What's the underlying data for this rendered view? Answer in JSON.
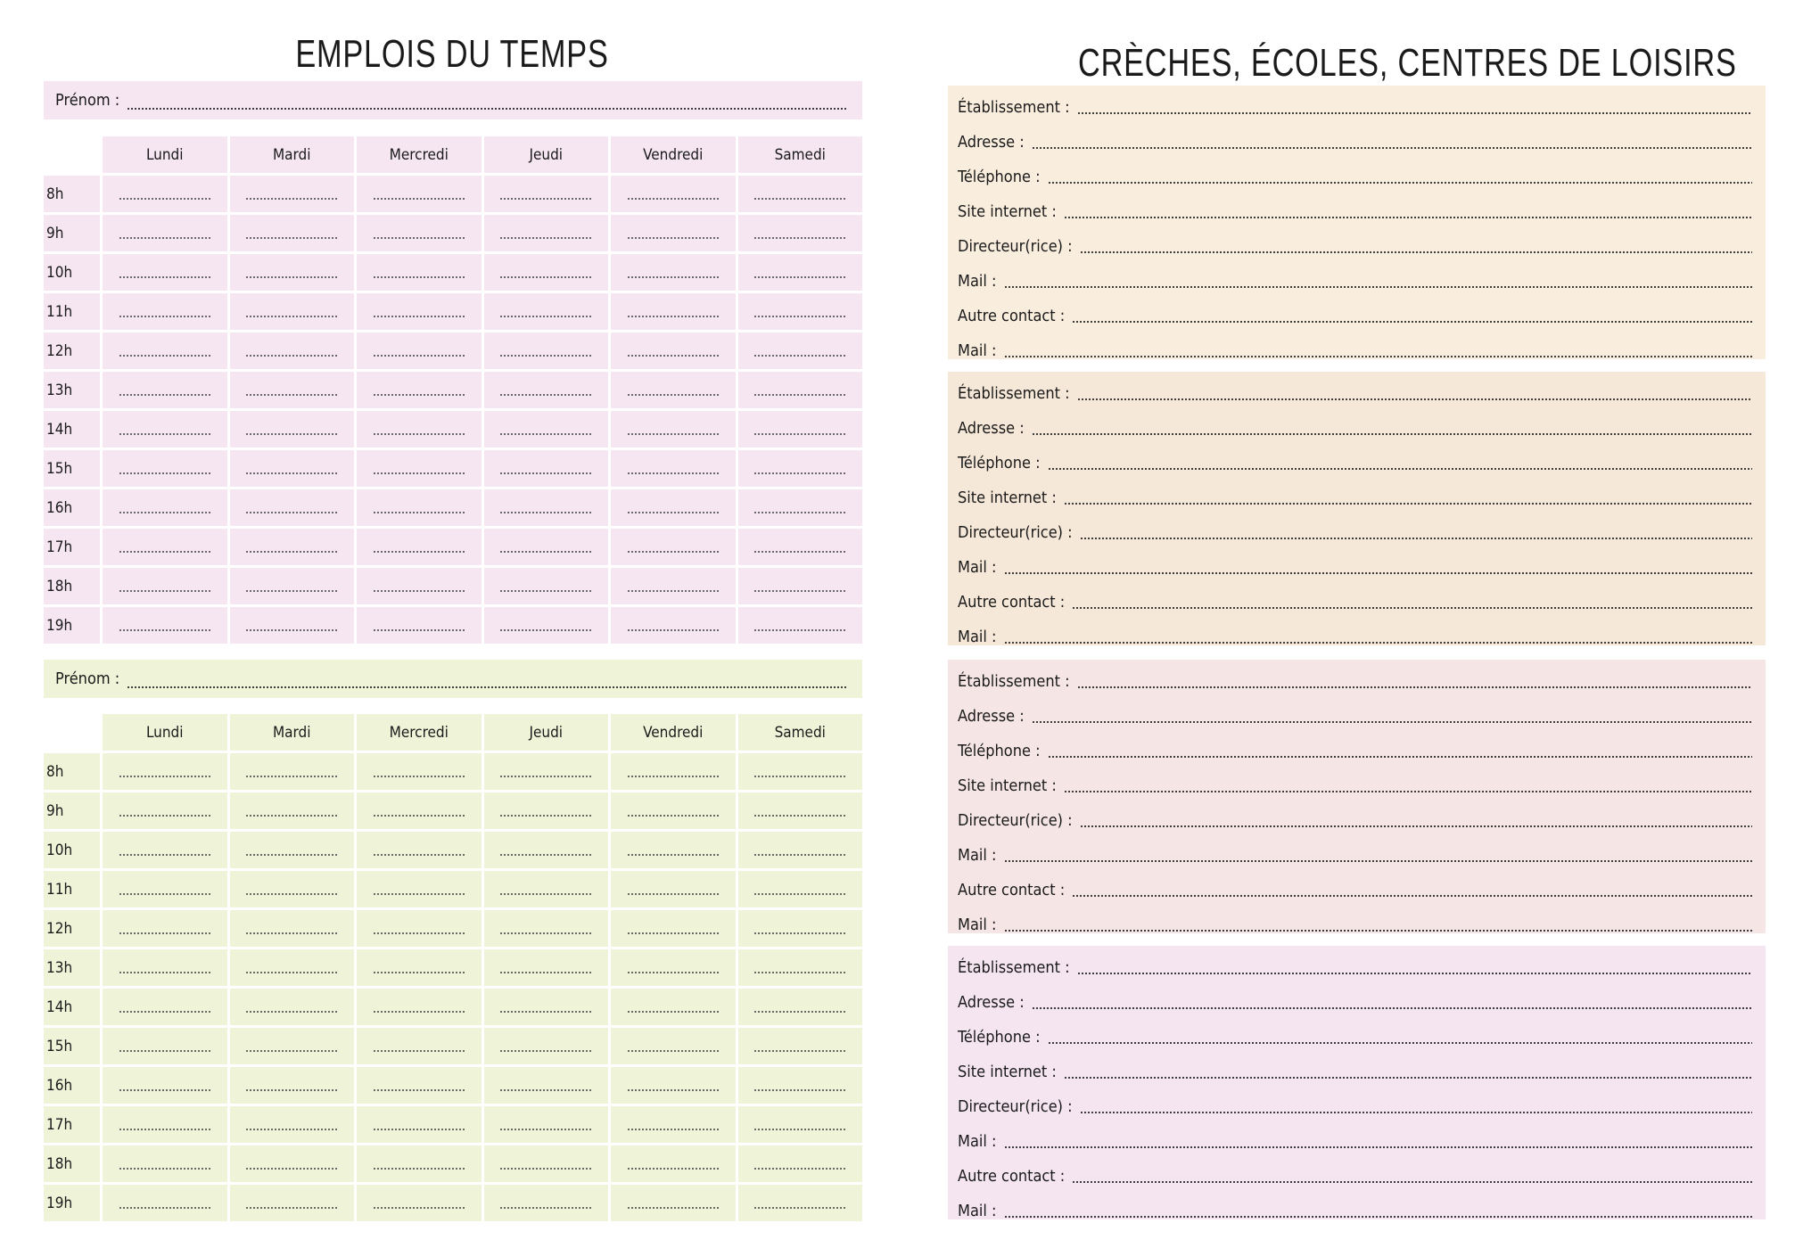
{
  "left": {
    "title": "EMPLOIS DU TEMPS",
    "schedules": [
      {
        "prenom_label": "Prénom :",
        "color": "#f5e6f1"
      },
      {
        "prenom_label": "Prénom :",
        "color": "#eff4d8"
      }
    ],
    "days": [
      "Lundi",
      "Mardi",
      "Mercredi",
      "Jeudi",
      "Vendredi",
      "Samedi"
    ],
    "hours": [
      "8h",
      "9h",
      "10h",
      "11h",
      "12h",
      "13h",
      "14h",
      "15h",
      "16h",
      "17h",
      "18h",
      "19h"
    ]
  },
  "right": {
    "title": "CRÈCHES, ÉCOLES, CENTRES DE LOISIRS",
    "fields": [
      "Établissement :",
      "Adresse :",
      "Téléphone :",
      "Site internet :",
      "Directeur(rice) :",
      "Mail :",
      "Autre contact :",
      "Mail :"
    ],
    "box_colors": [
      "#f9eddd",
      "#f6e8d8",
      "#f5e5e5",
      "#f4e5f1"
    ]
  }
}
